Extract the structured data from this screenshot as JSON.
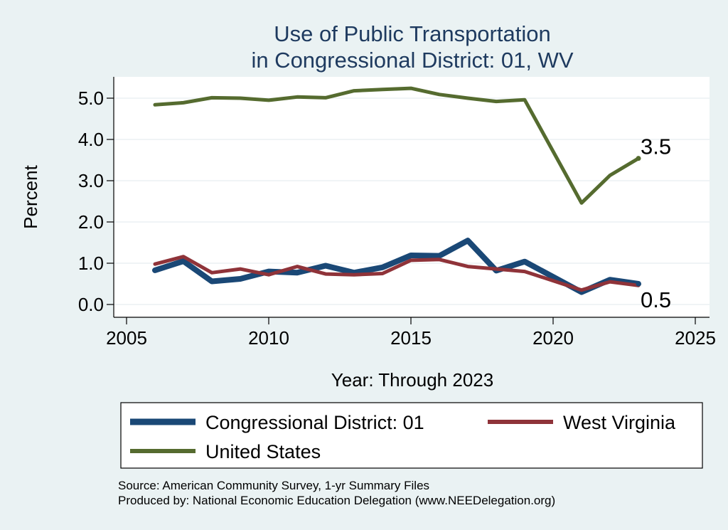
{
  "chart_data": {
    "type": "line",
    "title": [
      "Use of Public Transportation",
      "in Congressional District: 01, WV"
    ],
    "xlabel": "Year: Through 2023",
    "ylabel": "Percent",
    "xlim": [
      2005,
      2025
    ],
    "ylim": [
      0,
      5.3
    ],
    "xticks": [
      2005,
      2010,
      2015,
      2020,
      2025
    ],
    "yticks": [
      0.0,
      1.0,
      2.0,
      3.0,
      4.0,
      5.0
    ],
    "ytick_labels": [
      "0.0",
      "1.0",
      "2.0",
      "3.0",
      "4.0",
      "5.0"
    ],
    "grid": true,
    "legend_position": "bottom",
    "x": [
      2006,
      2007,
      2008,
      2009,
      2010,
      2011,
      2012,
      2013,
      2014,
      2015,
      2016,
      2017,
      2018,
      2019,
      2021,
      2022,
      2023
    ],
    "series": [
      {
        "name": "Congressional District: 01",
        "color": "#1a4876",
        "values": [
          0.83,
          1.05,
          0.56,
          0.62,
          0.8,
          0.77,
          0.94,
          0.77,
          0.9,
          1.19,
          1.18,
          1.55,
          0.82,
          1.04,
          0.3,
          0.6,
          0.5
        ]
      },
      {
        "name": "West Virginia",
        "color": "#8f3339",
        "values": [
          0.98,
          1.16,
          0.77,
          0.86,
          0.72,
          0.92,
          0.74,
          0.72,
          0.75,
          1.07,
          1.09,
          0.92,
          0.86,
          0.8,
          0.35,
          0.55,
          0.46
        ]
      },
      {
        "name": "United States",
        "color": "#556b2f",
        "values": [
          4.84,
          4.89,
          5.01,
          5.0,
          4.95,
          5.03,
          5.01,
          5.18,
          5.21,
          5.24,
          5.09,
          5.0,
          4.92,
          4.96,
          2.46,
          3.13,
          3.54
        ]
      }
    ],
    "end_labels": [
      {
        "text": "3.5",
        "series": "United States"
      },
      {
        "text": "0.5",
        "series": "Congressional District: 01"
      }
    ]
  },
  "source_lines": [
    "Source: American Community Survey, 1-yr Summary Files",
    "Produced by: National Economic Education Delegation (www.NEEDelegation.org)"
  ]
}
